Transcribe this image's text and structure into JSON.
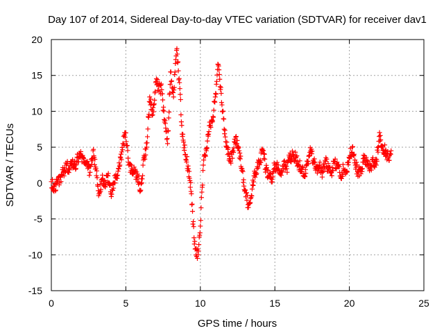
{
  "chart_data": {
    "type": "scatter",
    "title": "Day 107 of 2014, Sidereal Day-to-day VTEC variation (SDTVAR) for receiver dav1",
    "xlabel": "GPS time / hours",
    "ylabel": "SDTVAR / TECUs",
    "xlim": [
      0,
      25
    ],
    "ylim": [
      -15,
      20
    ],
    "x_ticks": [
      "0",
      "5",
      "10",
      "15",
      "20",
      "25"
    ],
    "y_ticks": [
      "-15",
      "-10",
      "-5",
      "0",
      "5",
      "10",
      "15",
      "20"
    ],
    "grid": true,
    "marker": "plus",
    "color": "#ff0000",
    "series": [
      {
        "name": "SDTVAR",
        "x": [
          0.0,
          0.2,
          0.4,
          0.6,
          0.8,
          1.0,
          1.2,
          1.4,
          1.6,
          1.8,
          2.0,
          2.2,
          2.4,
          2.6,
          2.8,
          3.0,
          3.2,
          3.4,
          3.6,
          3.8,
          4.0,
          4.2,
          4.4,
          4.6,
          4.8,
          5.0,
          5.2,
          5.4,
          5.6,
          5.8,
          6.0,
          6.2,
          6.4,
          6.6,
          6.8,
          7.0,
          7.2,
          7.4,
          7.6,
          7.8,
          8.0,
          8.2,
          8.4,
          8.6,
          8.8,
          9.0,
          9.2,
          9.4,
          9.6,
          9.8,
          10.0,
          10.2,
          10.4,
          10.6,
          10.8,
          11.0,
          11.2,
          11.4,
          11.6,
          11.8,
          12.0,
          12.2,
          12.4,
          12.6,
          12.8,
          13.0,
          13.2,
          13.4,
          13.6,
          13.8,
          14.0,
          14.2,
          14.4,
          14.6,
          14.8,
          15.0,
          15.2,
          15.4,
          15.6,
          15.8,
          16.0,
          16.2,
          16.4,
          16.6,
          16.8,
          17.0,
          17.2,
          17.4,
          17.6,
          17.8,
          18.0,
          18.2,
          18.4,
          18.6,
          18.8,
          19.0,
          19.2,
          19.4,
          19.6,
          19.8,
          20.0,
          20.2,
          20.4,
          20.6,
          20.8,
          21.0,
          21.2,
          21.4,
          21.6,
          21.8,
          22.0,
          22.2,
          22.4,
          22.6,
          22.8
        ],
        "y": [
          0.2,
          -0.5,
          0.0,
          0.8,
          1.5,
          2.5,
          2.0,
          3.0,
          2.5,
          3.5,
          3.8,
          3.0,
          2.5,
          1.5,
          4.5,
          2.0,
          -1.5,
          0.5,
          -0.5,
          1.0,
          -1.5,
          0.0,
          1.0,
          2.5,
          5.5,
          7.0,
          2.5,
          2.0,
          1.5,
          1.0,
          -1.0,
          3.5,
          5.0,
          12.0,
          9.5,
          14.0,
          13.5,
          13.0,
          8.5,
          5.5,
          15.5,
          12.0,
          18.5,
          14.0,
          6.5,
          4.0,
          2.0,
          -1.5,
          -8.5,
          -10.5,
          -6.0,
          2.5,
          4.5,
          8.0,
          8.5,
          12.0,
          16.5,
          12.5,
          7.5,
          5.0,
          3.0,
          4.5,
          6.5,
          4.5,
          2.0,
          -1.0,
          -3.0,
          -2.0,
          1.0,
          2.0,
          3.0,
          4.5,
          2.0,
          1.0,
          0.5,
          2.5,
          2.0,
          1.5,
          3.0,
          2.0,
          3.5,
          4.0,
          3.5,
          2.5,
          2.0,
          1.0,
          3.0,
          4.5,
          3.0,
          2.0,
          2.5,
          1.5,
          3.0,
          2.0,
          1.5,
          3.0,
          2.5,
          1.0,
          2.0,
          1.5,
          3.5,
          5.0,
          2.5,
          1.5,
          2.0,
          3.5,
          2.5,
          2.0,
          3.0,
          2.5,
          6.5,
          5.0,
          4.5,
          3.5,
          4.5
        ]
      }
    ]
  }
}
